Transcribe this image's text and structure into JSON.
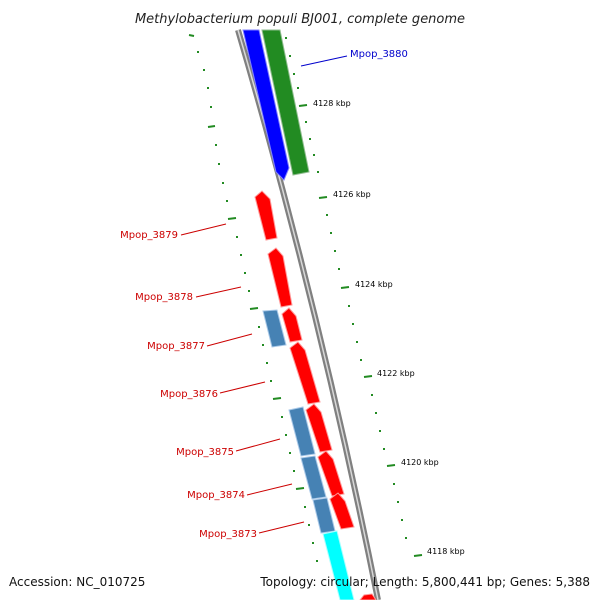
{
  "title": "Methylobacterium populi BJ001, complete genome",
  "footer": {
    "accession": "Accession: NC_010725",
    "summary": "Topology: circular; Length: 5,800,441 bp; Genes: 5,388"
  },
  "colors": {
    "backbone": "#808080",
    "forward_gene": "#ff0000",
    "reverse_gene": "#4682b4",
    "blue_gene": "#0000ff",
    "green_gene": "#228b22",
    "cyan_gene": "#00ffff",
    "tick": "#006400",
    "label_red": "#cc0000",
    "label_blue": "#0000cc"
  },
  "kbp_ticks": [
    "4128 kbp",
    "4126 kbp",
    "4124 kbp",
    "4122 kbp",
    "4120 kbp",
    "4118 kbp"
  ],
  "gene_labels": [
    {
      "name": "Mpop_3880",
      "color": "blue"
    },
    {
      "name": "Mpop_3879",
      "color": "red"
    },
    {
      "name": "Mpop_3878",
      "color": "red"
    },
    {
      "name": "Mpop_3877",
      "color": "red"
    },
    {
      "name": "Mpop_3876",
      "color": "red"
    },
    {
      "name": "Mpop_3875",
      "color": "red"
    },
    {
      "name": "Mpop_3874",
      "color": "red"
    },
    {
      "name": "Mpop_3873",
      "color": "red"
    }
  ]
}
